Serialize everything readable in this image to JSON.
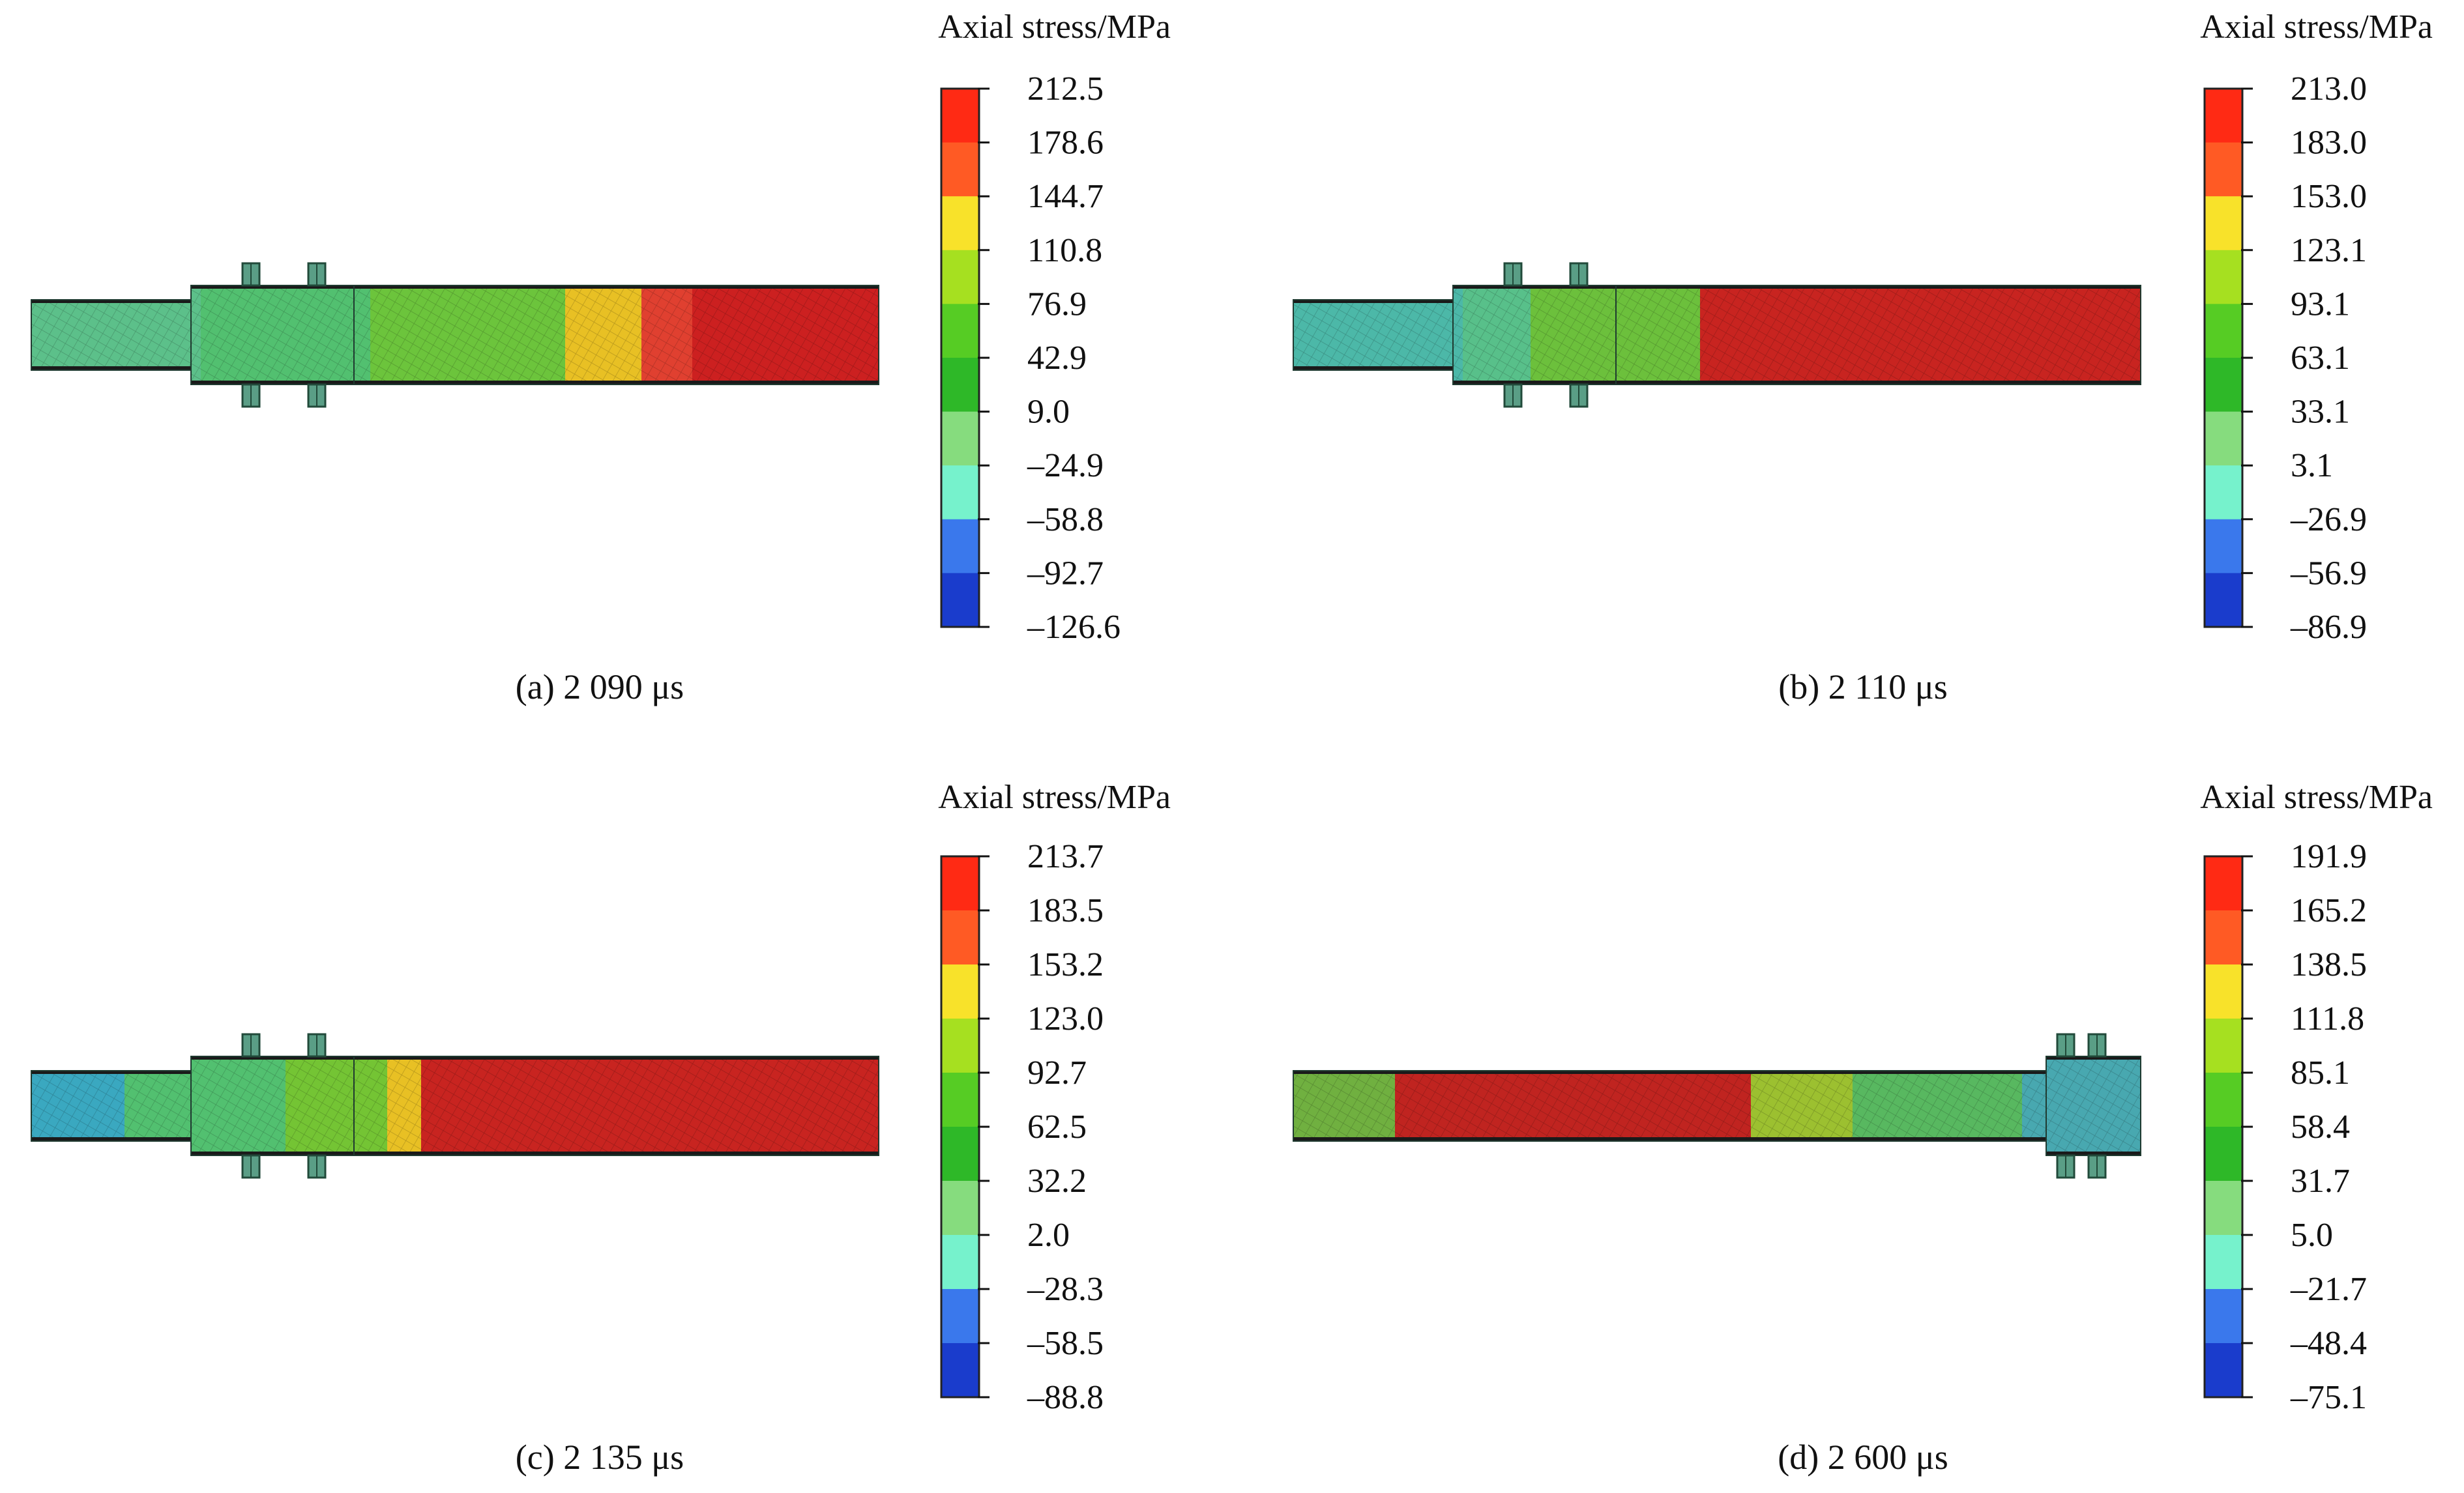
{
  "colorbar_colors": [
    "#ff2a14",
    "#ff5a24",
    "#f8e22a",
    "#a6e020",
    "#56cc24",
    "#2eb828",
    "#86dc7e",
    "#76f2cc",
    "#3a78ec",
    "#1a3ccc"
  ],
  "panels": [
    {
      "title": "Axial stress/MPa",
      "caption": "(a) 2 090 μs",
      "tick_labels": [
        "212.5",
        "178.6",
        "144.7",
        "110.8",
        "76.9",
        "42.9",
        "9.0",
        "–24.9",
        "–58.8",
        "–92.7",
        "–126.6"
      ],
      "orientation": "flange-left",
      "stress_bands": [
        {
          "from": 0.0,
          "to": 0.2,
          "color": "#5cc08a"
        },
        {
          "from": 0.2,
          "to": 0.4,
          "color": "#52c070"
        },
        {
          "from": 0.4,
          "to": 0.63,
          "color": "#6cc43c"
        },
        {
          "from": 0.63,
          "to": 0.72,
          "color": "#e8c024"
        },
        {
          "from": 0.72,
          "to": 0.78,
          "color": "#e04030"
        },
        {
          "from": 0.78,
          "to": 1.0,
          "color": "#cc2020"
        }
      ]
    },
    {
      "title": "Axial stress/MPa",
      "caption": "(b) 2 110 μs",
      "tick_labels": [
        "213.0",
        "183.0",
        "153.0",
        "123.1",
        "93.1",
        "63.1",
        "33.1",
        "3.1",
        "–26.9",
        "–56.9",
        "–86.9"
      ],
      "orientation": "flange-left",
      "stress_bands": [
        {
          "from": 0.0,
          "to": 0.2,
          "color": "#4cb8a8"
        },
        {
          "from": 0.2,
          "to": 0.28,
          "color": "#58c08a"
        },
        {
          "from": 0.28,
          "to": 0.48,
          "color": "#6cc03c"
        },
        {
          "from": 0.48,
          "to": 1.0,
          "color": "#c82420"
        }
      ]
    },
    {
      "title": "Axial stress/MPa",
      "caption": "(c) 2 135 μs",
      "tick_labels": [
        "213.7",
        "183.5",
        "153.2",
        "123.0",
        "92.7",
        "62.5",
        "32.2",
        "2.0",
        "–28.3",
        "–58.5",
        "–88.8"
      ],
      "orientation": "flange-left",
      "stress_bands": [
        {
          "from": 0.0,
          "to": 0.11,
          "color": "#3aa8c0"
        },
        {
          "from": 0.11,
          "to": 0.3,
          "color": "#52c070"
        },
        {
          "from": 0.3,
          "to": 0.42,
          "color": "#74c434"
        },
        {
          "from": 0.42,
          "to": 0.46,
          "color": "#e8c024"
        },
        {
          "from": 0.46,
          "to": 1.0,
          "color": "#c82420"
        }
      ]
    },
    {
      "title": "Axial stress/MPa",
      "caption": "(d) 2 600 μs",
      "tick_labels": [
        "191.9",
        "165.2",
        "138.5",
        "111.8",
        "85.1",
        "58.4",
        "31.7",
        "5.0",
        "–21.7",
        "–48.4",
        "–75.1"
      ],
      "orientation": "flange-right",
      "stress_bands": [
        {
          "from": 0.0,
          "to": 0.12,
          "color": "#70b040"
        },
        {
          "from": 0.12,
          "to": 0.54,
          "color": "#c02420"
        },
        {
          "from": 0.54,
          "to": 0.66,
          "color": "#9cc030"
        },
        {
          "from": 0.66,
          "to": 0.86,
          "color": "#58b860"
        },
        {
          "from": 0.86,
          "to": 1.0,
          "color": "#48a8b0"
        }
      ]
    }
  ]
}
